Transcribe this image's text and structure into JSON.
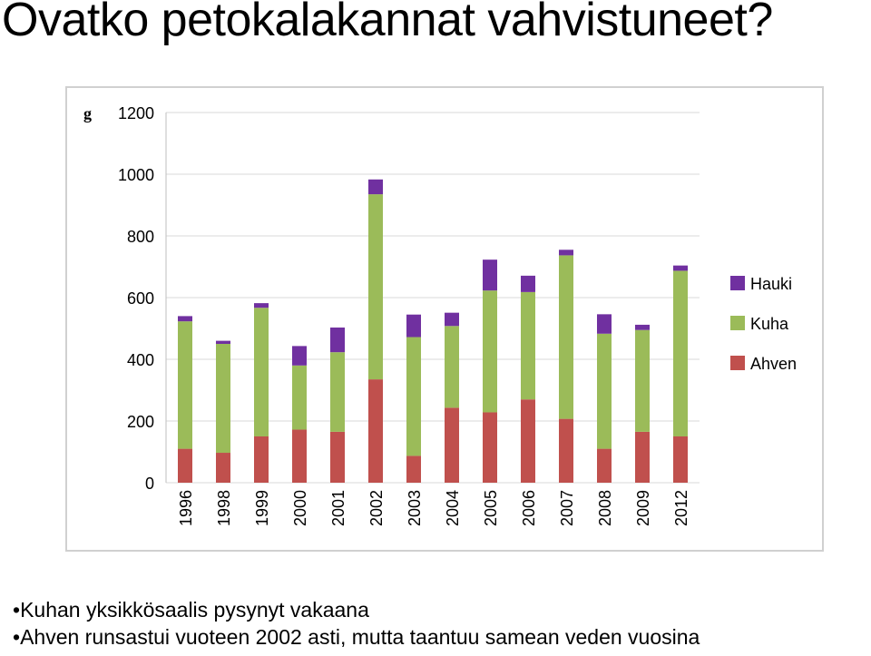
{
  "title": "Ovatko petokalakannat vahvistuneet?",
  "colors": {
    "Ahven": "#c0504d",
    "Kuha": "#9bbb59",
    "Hauki": "#7030a0",
    "grid": "#d9d9d9"
  },
  "chart_data": {
    "type": "bar",
    "stacked": true,
    "ylabel": "g",
    "ylim": [
      0,
      1200
    ],
    "yticks": [
      0,
      200,
      400,
      600,
      800,
      1000,
      1200
    ],
    "grid": true,
    "legend_position": "right",
    "categories": [
      "1996",
      "1998",
      "1999",
      "2000",
      "2001",
      "2002",
      "2003",
      "2004",
      "2005",
      "2006",
      "2007",
      "2008",
      "2009",
      "2012"
    ],
    "series": [
      {
        "name": "Ahven",
        "values": [
          110,
          97,
          150,
          172,
          165,
          335,
          87,
          243,
          228,
          270,
          207,
          110,
          165,
          150
        ]
      },
      {
        "name": "Kuha",
        "values": [
          413,
          353,
          417,
          208,
          258,
          600,
          385,
          265,
          395,
          348,
          530,
          373,
          330,
          537
        ]
      },
      {
        "name": "Hauki",
        "values": [
          17,
          10,
          15,
          63,
          80,
          48,
          73,
          43,
          100,
          53,
          18,
          63,
          17,
          17
        ]
      }
    ],
    "legend_order": [
      "Hauki",
      "Kuha",
      "Ahven"
    ]
  },
  "bullets": [
    "Kuhan yksikkösaalis pysynyt vakaana",
    "Ahven runsastui vuoteen 2002 asti, mutta taantuu samean veden vuosina"
  ]
}
